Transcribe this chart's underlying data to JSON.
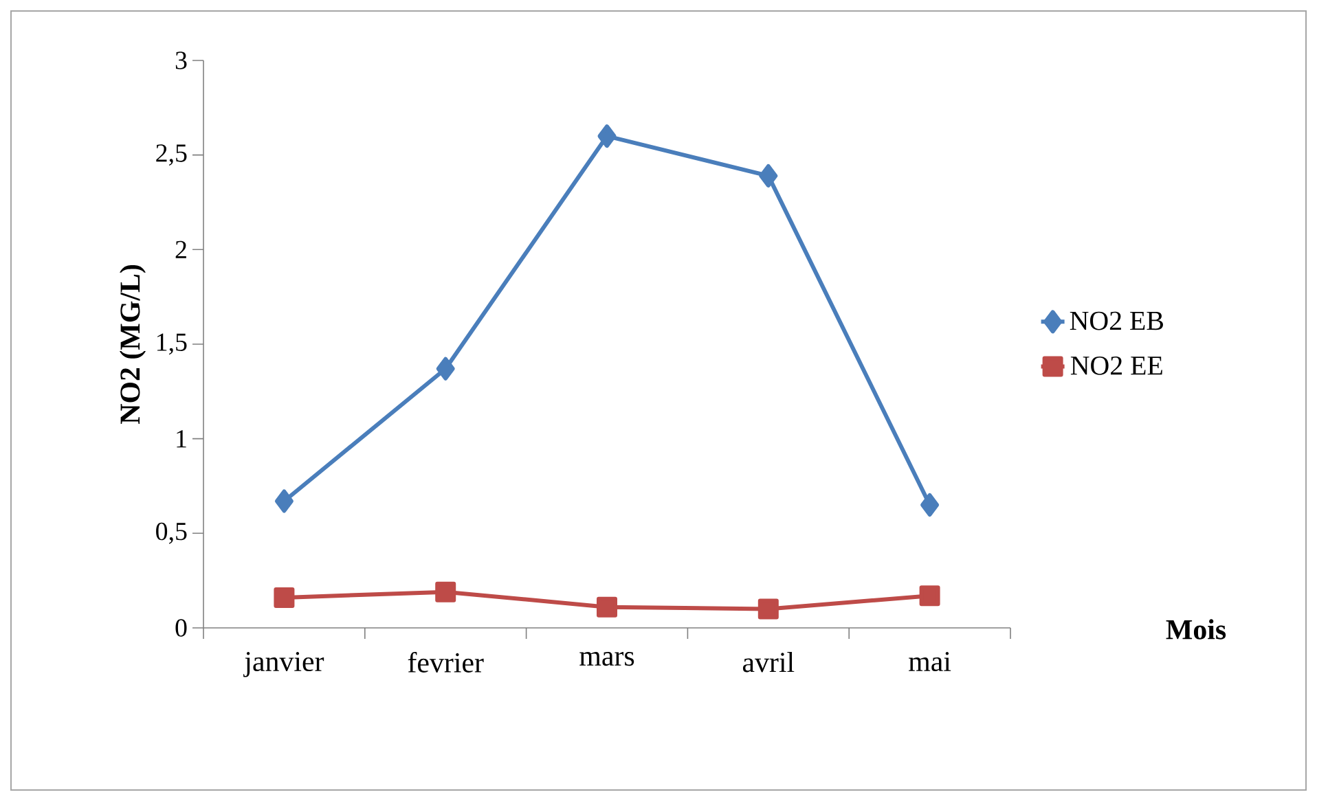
{
  "chart_data": {
    "type": "line",
    "annotations": [
      "Mois"
    ],
    "ylabel": "NO2 (MG/L)",
    "categories": [
      "janvier",
      "fevrier",
      "mars",
      "avril",
      "mai"
    ],
    "series": [
      {
        "name": "NO2 EB",
        "color": "#4a7ebb",
        "marker": "diamond",
        "values": [
          0.67,
          1.37,
          2.6,
          2.39,
          0.65
        ]
      },
      {
        "name": "NO2 EE",
        "color": "#be4b48",
        "marker": "square",
        "values": [
          0.16,
          0.19,
          0.11,
          0.1,
          0.17
        ]
      }
    ],
    "ylim": [
      0,
      3
    ],
    "yticks": [
      0,
      {
        "value": 0.5,
        "label": "0,5"
      },
      1,
      {
        "value": 1.5,
        "label": "1,5"
      },
      2,
      {
        "value": 2.5,
        "label": "2,5"
      },
      3
    ],
    "grid": false,
    "legend": "right",
    "line_style": "solid"
  }
}
